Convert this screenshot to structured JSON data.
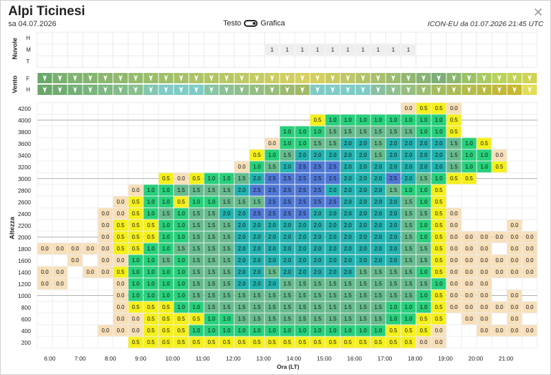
{
  "header": {
    "title": "Alpi Ticinesi",
    "date": "sa 04.07.2026",
    "toggle_left": "Testo",
    "toggle_right": "Grafica",
    "model_run": "ICON-EU da 01.07.2026 21:45 UTC",
    "close_icon": "close-icon"
  },
  "clouds": {
    "label": "Nuvole",
    "levels": [
      "H",
      "M",
      "T"
    ],
    "middle_values": [
      "1",
      "1",
      "1",
      "1",
      "1",
      "1",
      "1",
      "1",
      "1",
      "1"
    ]
  },
  "wind": {
    "label": "Vento",
    "levels": [
      "F",
      "H"
    ],
    "icon": "wind-arrow-icon"
  },
  "chart_data": {
    "type": "heatmap",
    "xlabel": "Ora (LT)",
    "ylabel": "Altezza",
    "x_ticks": [
      "6:00",
      "7:00",
      "8:00",
      "9:00",
      "10:00",
      "11:00",
      "12:00",
      "13:00",
      "14:00",
      "15:00",
      "16:00",
      "17:00",
      "18:00",
      "19:00",
      "20:00",
      "21:00"
    ],
    "y_ticks": [
      "4200",
      "4000",
      "3800",
      "3600",
      "3400",
      "3200",
      "3000",
      "2800",
      "2600",
      "2400",
      "2200",
      "2000",
      "1800",
      "1600",
      "1400",
      "1200",
      "1000",
      "800",
      "600",
      "400",
      "200"
    ],
    "rows": [
      "                      0.0 0.5 0.5 0.0        ",
      "                  0.5 1.0 1.0 1.0 1.0 1.0 1.0 1.0 1.0 0.5        ",
      "              1.0 1.0 1.0 1.5 1.5 1.5 1.5 1.5 1.5 1.0 1.0 0.5        ",
      "              0.0 1.0 1.0 1.5 1.5 2.0 2.0 1.5 2.0 2.0 2.0 2.0 1.5 1.0 1.0 0.5      ",
      "              0.5 1.0 1.5 2.0 2.0 2.0 2.0 2.0 1.5 2.0 2.0 2.0 2.0 1.5 1.0 1.0 0.0      ",
      "            0.0 1.0 1.5 2.0 2.5 2.5 2.5 2.0 2.0 2.0 2.0 2.0 2.0 2.0 1.5 1.0 1.0 0.0      ",
      "      0.5 0.0 0.5 1.0 1.0 1.5 2.0 2.5 2.5 2.5 2.5 2.5 2.0 2.0 2.0 2.5 2.0 1.5 1.0 0.5      ",
      "    0.0 1.0 1.0 1.5 1.5 1.5 1.5 2.0 2.5 2.5 2.5 2.5 2.5 2.0 2.0 2.0 2.0 1.5 1.0 1.0 0.5      ",
      "    0.0 1.0 1.0 0.5 1.0 1.0 1.5 1.5 1.5 2.5 2.5 2.5 2.5 2.5 2.0 2.0 2.0 2.0 1.5 1.0 0.5      "
    ],
    "value_legend": [
      "0.0",
      "0.5",
      "1.0",
      "1.5",
      "2.0",
      "2.5"
    ]
  }
}
